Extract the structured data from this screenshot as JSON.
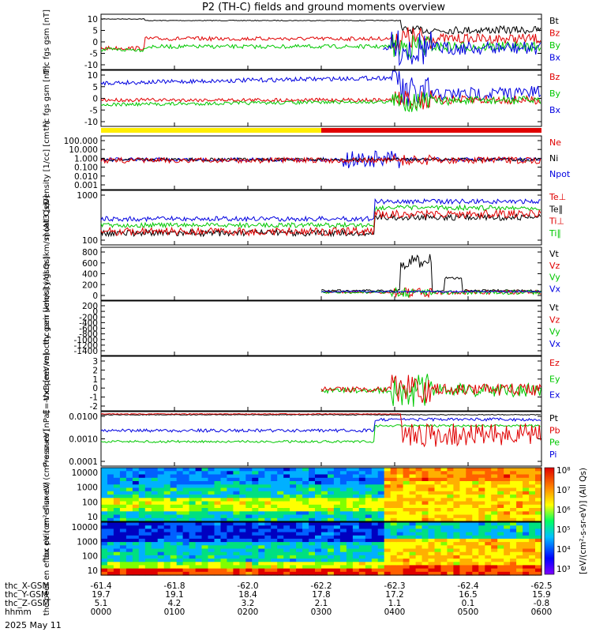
{
  "title": "P2 (TH-C) fields and ground moments overview",
  "date_label": "2025 May 11",
  "colors": {
    "black": "#000000",
    "red": "#e00000",
    "green": "#00c800",
    "blue": "#0000e0",
    "yellow": "#ffee00"
  },
  "colorbar": {
    "label": "[eV/(cm²-s-sr-eV)] (All Qs)",
    "ticks": [
      "10³",
      "10⁴",
      "10⁵",
      "10⁶",
      "10⁷",
      "10⁸"
    ]
  },
  "xaxis": {
    "rows": [
      {
        "label": "thc_X-GSM",
        "values": [
          "-61.4",
          "-61.8",
          "-62.0",
          "-62.2",
          "-62.3",
          "-62.4",
          "-62.5"
        ]
      },
      {
        "label": "thc_Y-GSM",
        "values": [
          "19.7",
          "19.1",
          "18.4",
          "17.8",
          "17.2",
          "16.5",
          "15.9"
        ]
      },
      {
        "label": "thc_Z-GSM",
        "values": [
          "5.1",
          "4.2",
          "3.2",
          "2.1",
          "1.1",
          "0.1",
          "-0.8"
        ]
      },
      {
        "label": "hhmm",
        "values": [
          "0000",
          "0100",
          "0200",
          "0300",
          "0400",
          "0500",
          "0600"
        ]
      }
    ]
  },
  "chart_data": [
    {
      "type": "line",
      "ylabel": "thc fgs gsm [nT]",
      "ylim": [
        -12,
        12
      ],
      "ticks": [
        "10",
        "5",
        "0",
        "-5",
        "-10"
      ],
      "series": [
        {
          "name": "Bt",
          "color": "#000000"
        },
        {
          "name": "Bz",
          "color": "#e00000"
        },
        {
          "name": "By",
          "color": "#00c800"
        },
        {
          "name": "Bx",
          "color": "#0000e0"
        }
      ]
    },
    {
      "type": "line",
      "ylabel": "thc fgs gsm [nT]",
      "ylim": [
        -12,
        12
      ],
      "ticks": [
        "10",
        "5",
        "0",
        "-5",
        "-10"
      ],
      "series": [
        {
          "name": "Bz",
          "color": "#e00000"
        },
        {
          "name": "By",
          "color": "#00c800"
        },
        {
          "name": "Bx",
          "color": "#0000e0"
        }
      ]
    },
    {
      "type": "line",
      "ylabel": "Density [1/cc] [cm⁻³]",
      "scale": "log",
      "ticks": [
        "100.000",
        "10.000",
        "1.000",
        "0.100",
        "0.010",
        "0.001"
      ],
      "series": [
        {
          "name": "Ne",
          "color": "#e00000"
        },
        {
          "name": "Ni",
          "color": "#000000"
        },
        {
          "name": "Npot",
          "color": "#0000e0"
        }
      ]
    },
    {
      "type": "line",
      "ylabel": "moat3 [eV]",
      "scale": "log",
      "ticks": [
        "1000",
        "100"
      ],
      "series": [
        {
          "name": "Te⊥",
          "color": "#e00000"
        },
        {
          "name": "Te∥",
          "color": "#000000"
        },
        {
          "name": "Ti⊥",
          "color": "#e00000"
        },
        {
          "name": "Ti∥",
          "color": "#00c800"
        }
      ]
    },
    {
      "type": "line",
      "ylabel": "thc peir velocity gsm [km/s] (All Qs)",
      "ylim": [
        -60,
        840
      ],
      "ticks": [
        "800",
        "600",
        "400",
        "200",
        "0"
      ],
      "series": [
        {
          "name": "Vt",
          "color": "#000000"
        },
        {
          "name": "Vz",
          "color": "#e00000"
        },
        {
          "name": "Vy",
          "color": "#00c800"
        },
        {
          "name": "Vx",
          "color": "#0000e0"
        }
      ]
    },
    {
      "type": "line",
      "ylabel": "thc peer velocity gsm [km/s] (All Qs)",
      "ylim": [
        -1500,
        250
      ],
      "ticks": [
        "200",
        "0",
        "-200",
        "-400",
        "-600",
        "-800",
        "-1000",
        "-1200",
        "-1400"
      ],
      "series": [
        {
          "name": "Vt",
          "color": "#000000"
        },
        {
          "name": "Vz",
          "color": "#e00000"
        },
        {
          "name": "Vy",
          "color": "#00c800"
        },
        {
          "name": "Vx",
          "color": "#0000e0"
        }
      ]
    },
    {
      "type": "line",
      "ylabel": "E=-VxB [mV/m]",
      "ylim": [
        -2.2,
        3.2
      ],
      "ticks": [
        "3",
        "2",
        "1",
        "0",
        "-1",
        "-2"
      ],
      "series": [
        {
          "name": "Ez",
          "color": "#e00000"
        },
        {
          "name": "Ey",
          "color": "#00c800"
        },
        {
          "name": "Ex",
          "color": "#0000e0"
        }
      ]
    },
    {
      "type": "line",
      "ylabel": "Pressure [nPa]",
      "scale": "log",
      "ticks": [
        "0.0100",
        "0.0010",
        "0.0001"
      ],
      "series": [
        {
          "name": "Pt",
          "color": "#000000"
        },
        {
          "name": "Pb",
          "color": "#e00000"
        },
        {
          "name": "Pe",
          "color": "#00c800"
        },
        {
          "name": "Pi",
          "color": "#0000e0"
        }
      ]
    },
    {
      "type": "heatmap",
      "ylabel": "thc peir en eflux eV (cm²-s-sr-eV)",
      "ticks": [
        "10000",
        "1000",
        "100",
        "10"
      ]
    },
    {
      "type": "heatmap",
      "ylabel": "thc peer en eflux eV (cm²-s-sr-eV)",
      "ticks": [
        "10000",
        "1000",
        "100",
        "10"
      ]
    }
  ]
}
